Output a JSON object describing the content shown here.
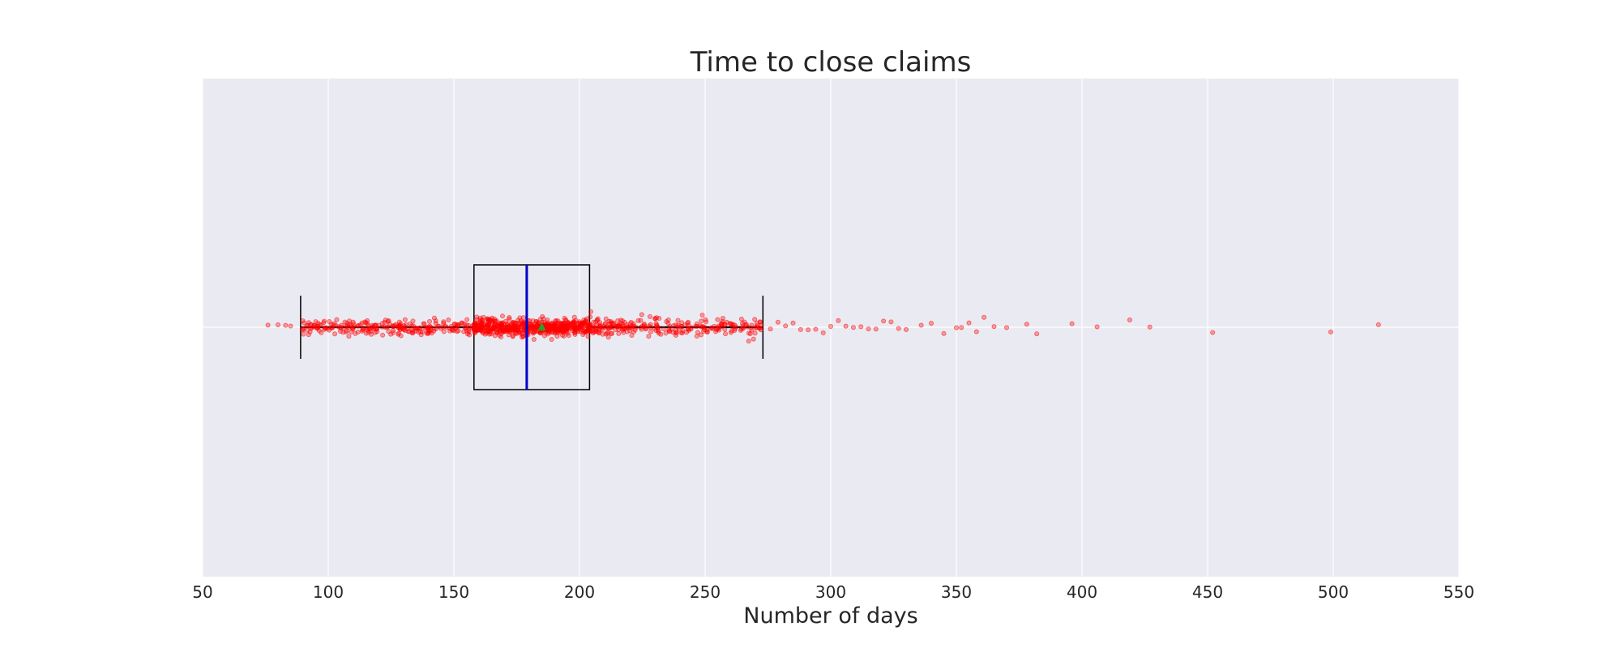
{
  "chart_data": {
    "type": "box",
    "title": "Time to close claims",
    "xlabel": "Number of days",
    "ylabel": "",
    "xlim": [
      50,
      550
    ],
    "xticks": [
      50,
      100,
      150,
      200,
      250,
      300,
      350,
      400,
      450,
      500,
      550
    ],
    "grid": true,
    "orientation": "horizontal",
    "box": {
      "whisker_low": 89,
      "q1": 158,
      "median": 179,
      "q3": 204,
      "whisker_high": 273,
      "mean": 185
    },
    "jitter_points": {
      "n": 1100,
      "dense_range": [
        89,
        273
      ],
      "outliers": [
        76,
        80,
        83,
        85,
        276,
        279,
        282,
        285,
        288,
        291,
        294,
        297,
        300,
        303,
        306,
        309,
        312,
        315,
        318,
        321,
        324,
        327,
        330,
        336,
        340,
        345,
        350,
        352,
        355,
        358,
        361,
        365,
        370,
        378,
        382,
        396,
        406,
        419,
        427,
        452,
        499,
        518
      ]
    }
  },
  "colors": {
    "plot_bg": "#eaeaf2",
    "grid": "#ffffff",
    "points": "#ff0000",
    "median": "#0000cc",
    "mean_marker": "#2ca02c",
    "box": "#000000"
  }
}
